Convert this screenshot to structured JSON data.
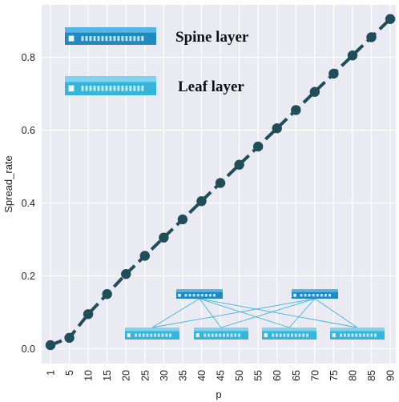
{
  "chart_data": {
    "type": "line",
    "x": [
      "1",
      "5",
      "10",
      "15",
      "20",
      "25",
      "30",
      "35",
      "40",
      "45",
      "50",
      "55",
      "60",
      "65",
      "70",
      "75",
      "80",
      "85",
      "90"
    ],
    "series": [
      {
        "values": [
          0.01,
          0.03,
          0.095,
          0.15,
          0.205,
          0.255,
          0.305,
          0.355,
          0.405,
          0.455,
          0.505,
          0.555,
          0.605,
          0.655,
          0.705,
          0.755,
          0.805,
          0.855,
          0.905
        ]
      }
    ],
    "xlabel": "p",
    "ylabel": "Spread_rate",
    "ylim": [
      -0.02,
      0.96
    ],
    "yticks": [
      "0.0",
      "0.2",
      "0.4",
      "0.6",
      "0.8"
    ],
    "ytick_values": [
      0,
      0.2,
      0.4,
      0.6,
      0.8
    ],
    "grid": true,
    "background_color": "#eaeaf2",
    "line_color": "#1f4e5a",
    "line_style": "dashed",
    "legend": [
      {
        "label": "Spine layer",
        "icon": "spine-switch-icon"
      },
      {
        "label": "Leaf layer",
        "icon": "leaf-switch-icon"
      }
    ],
    "legend_placement": "top-left",
    "inset": {
      "description_icon": "spine-leaf-topology-icon",
      "spine_count": 2,
      "leaf_count": 4,
      "spine_color": "#1f8ac2",
      "leaf_color": "#35b4dc",
      "link_color": "#3fb3dd"
    }
  }
}
